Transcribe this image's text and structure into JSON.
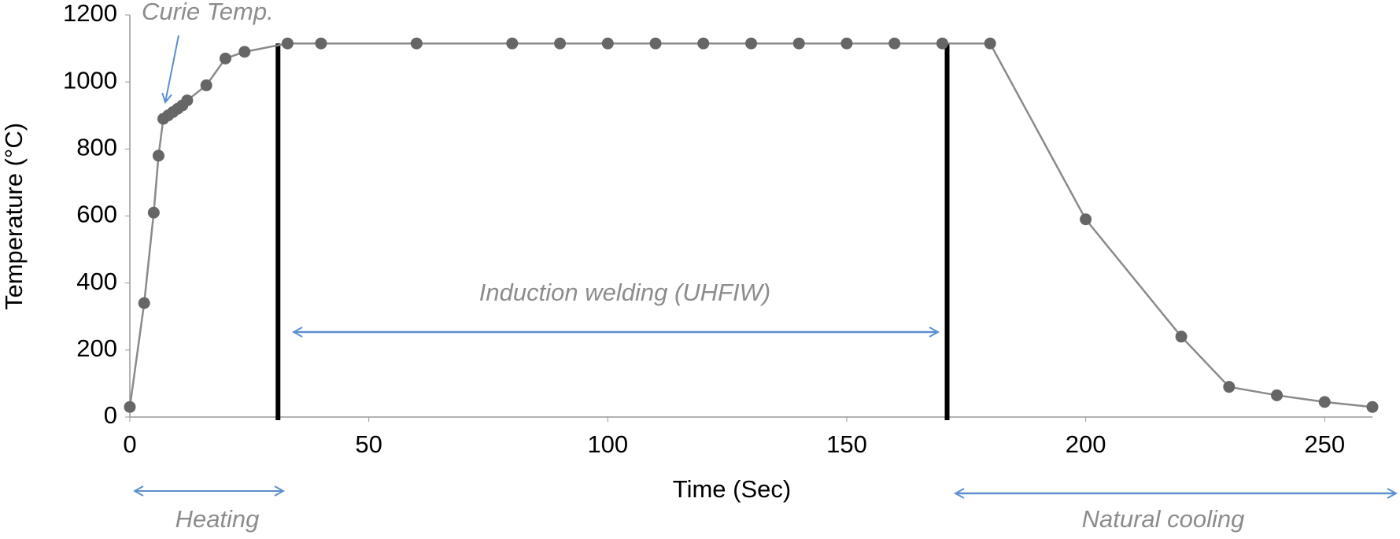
{
  "chart_data": {
    "type": "line",
    "xlabel": "Time (Sec)",
    "ylabel": "Temperature (°C)",
    "x": [
      0,
      3,
      5,
      6,
      7,
      8,
      9,
      10,
      11,
      12,
      16,
      20,
      24,
      33,
      40,
      60,
      80,
      90,
      100,
      110,
      120,
      130,
      140,
      150,
      160,
      170,
      180,
      200,
      220,
      230,
      240,
      250,
      260
    ],
    "series": [
      {
        "name": "Temperature",
        "color": "#8a8a8a",
        "marker_color": "#666666",
        "values": [
          30,
          340,
          610,
          780,
          890,
          900,
          910,
          920,
          930,
          945,
          990,
          1070,
          1090,
          1115,
          1115,
          1115,
          1115,
          1115,
          1115,
          1115,
          1115,
          1115,
          1115,
          1115,
          1115,
          1115,
          1115,
          590,
          240,
          90,
          65,
          45,
          30
        ]
      }
    ],
    "xlim": [
      0,
      260
    ],
    "ylim": [
      0,
      1200
    ],
    "xticks": [
      0,
      50,
      100,
      150,
      200,
      250
    ],
    "yticks": [
      0,
      200,
      400,
      600,
      800,
      1000,
      1200
    ],
    "grid": false,
    "phase_boundaries": [
      31,
      171
    ],
    "annotations": [
      "Curie Temp.",
      "Induction welding (UHFIW)",
      "Heating",
      "Natural cooling"
    ]
  }
}
